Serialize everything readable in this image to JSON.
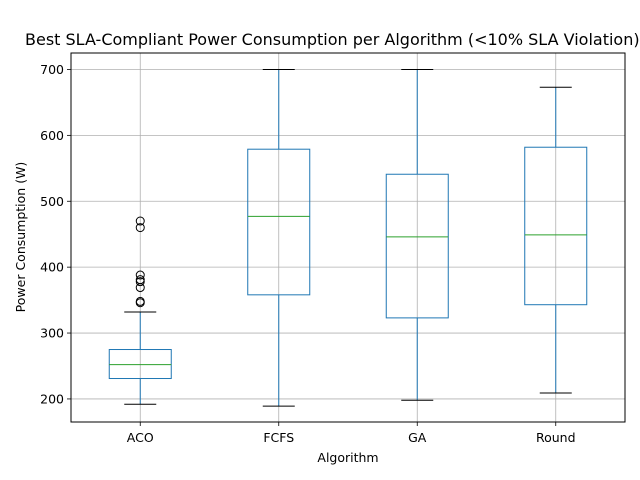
{
  "chart_data": {
    "type": "box",
    "title": "Best SLA-Compliant Power Consumption per Algorithm (<10% SLA Violation)",
    "xlabel": "Algorithm",
    "ylabel": "Power Consumption (W)",
    "categories": [
      "ACO",
      "FCFS",
      "GA",
      "Round"
    ],
    "ylim": [
      165,
      725
    ],
    "yticks": [
      200,
      300,
      400,
      500,
      600,
      700
    ],
    "grid": true,
    "colors": {
      "box": "#1f77b4",
      "median": "#2ca02c",
      "whisker": "#1f77b4",
      "cap": "#000000",
      "flier": "#000000",
      "grid": "#b0b0b0"
    },
    "boxes": [
      {
        "category": "ACO",
        "whisker_low": 192,
        "q1": 231,
        "median": 252,
        "q3": 275,
        "whisker_high": 332,
        "fliers": [
          346,
          348,
          369,
          378,
          381,
          388,
          460,
          470
        ]
      },
      {
        "category": "FCFS",
        "whisker_low": 189,
        "q1": 358,
        "median": 477,
        "q3": 579,
        "whisker_high": 700,
        "fliers": []
      },
      {
        "category": "GA",
        "whisker_low": 198,
        "q1": 323,
        "median": 446,
        "q3": 541,
        "whisker_high": 700,
        "fliers": []
      },
      {
        "category": "Round",
        "whisker_low": 209,
        "q1": 343,
        "median": 449,
        "q3": 582,
        "whisker_high": 673,
        "fliers": []
      }
    ]
  }
}
